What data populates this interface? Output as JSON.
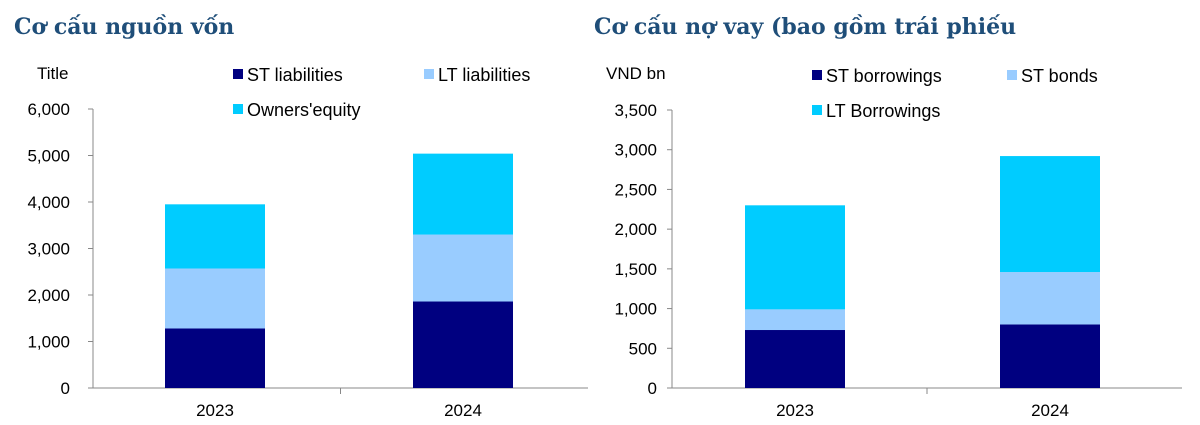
{
  "chart_data": [
    {
      "type": "bar",
      "stacked": true,
      "title": "Cơ cấu nguồn vốn",
      "unit_label": "Title",
      "categories": [
        "2023",
        "2024"
      ],
      "series": [
        {
          "name": "ST liabilities",
          "color": "#000080",
          "values": [
            1280,
            1860
          ]
        },
        {
          "name": "LT liabilities",
          "color": "#99CCFF",
          "values": [
            1290,
            1440
          ]
        },
        {
          "name": "Owners'equity",
          "color": "#00CCFF",
          "values": [
            1380,
            1740
          ]
        }
      ],
      "ylim": [
        0,
        6000
      ],
      "yticks": [
        "0",
        "1,000",
        "2,000",
        "3,000",
        "4,000",
        "5,000",
        "6,000"
      ],
      "legend": "top"
    },
    {
      "type": "bar",
      "stacked": true,
      "title": "Cơ cấu nợ vay (bao gồm trái phiếu",
      "unit_label": "VND bn",
      "categories": [
        "2023",
        "2024"
      ],
      "series": [
        {
          "name": "ST borrowings",
          "color": "#000080",
          "values": [
            730,
            800
          ]
        },
        {
          "name": "ST bonds",
          "color": "#99CCFF",
          "values": [
            260,
            660
          ]
        },
        {
          "name": "LT Borrowings",
          "color": "#00CCFF",
          "values": [
            1310,
            1460
          ]
        }
      ],
      "ylim": [
        0,
        3500
      ],
      "yticks": [
        "0",
        "500",
        "1,000",
        "1,500",
        "2,000",
        "2,500",
        "3,000",
        "3,500"
      ],
      "legend": "top"
    }
  ]
}
